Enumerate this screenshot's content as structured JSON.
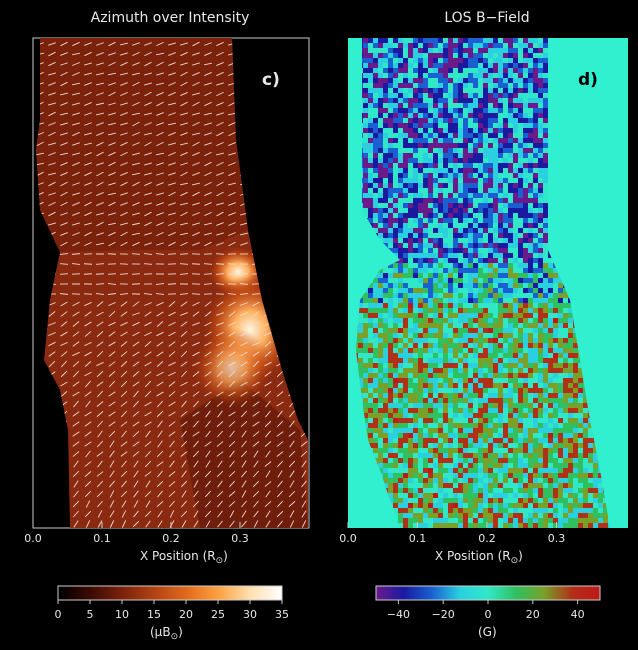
{
  "chart_data": [
    {
      "type": "heatmap",
      "title": "Azimuth over Intensity",
      "panel_label": "c)",
      "xlabel": "X Position (R",
      "xlabel_suffix": ")",
      "xlim": [
        0.0,
        0.4
      ],
      "xticks": [
        "0.0",
        "0.1",
        "0.2",
        "0.3"
      ],
      "colorbar": {
        "ticks": [
          "0",
          "5",
          "10",
          "15",
          "20",
          "25",
          "30",
          "35"
        ],
        "range": [
          0,
          35
        ],
        "label": "(μB",
        "label_suffix": ")",
        "colormap": [
          "#000000",
          "#3a0a04",
          "#7a220c",
          "#b24214",
          "#e06a1c",
          "#ffa040",
          "#ffe0b0",
          "#ffffff"
        ]
      },
      "overlay": "azimuth line segments"
    },
    {
      "type": "heatmap",
      "title": "LOS B−Field",
      "panel_label": "d)",
      "xlabel": "X Position (R",
      "xlabel_suffix": ")",
      "xlim": [
        0.0,
        0.4
      ],
      "xticks": [
        "0.0",
        "0.1",
        "0.2",
        "0.3"
      ],
      "colorbar": {
        "ticks": [
          "−40",
          "−20",
          "0",
          "20",
          "40"
        ],
        "range": [
          -50,
          50
        ],
        "label": "(G)",
        "colormap": [
          "#6a1a8a",
          "#1a1aa0",
          "#1a60d0",
          "#2ad0e0",
          "#30e8c8",
          "#30c060",
          "#7aa02a",
          "#b03018",
          "#c01818"
        ]
      },
      "background_color": "#30f0d0"
    }
  ]
}
